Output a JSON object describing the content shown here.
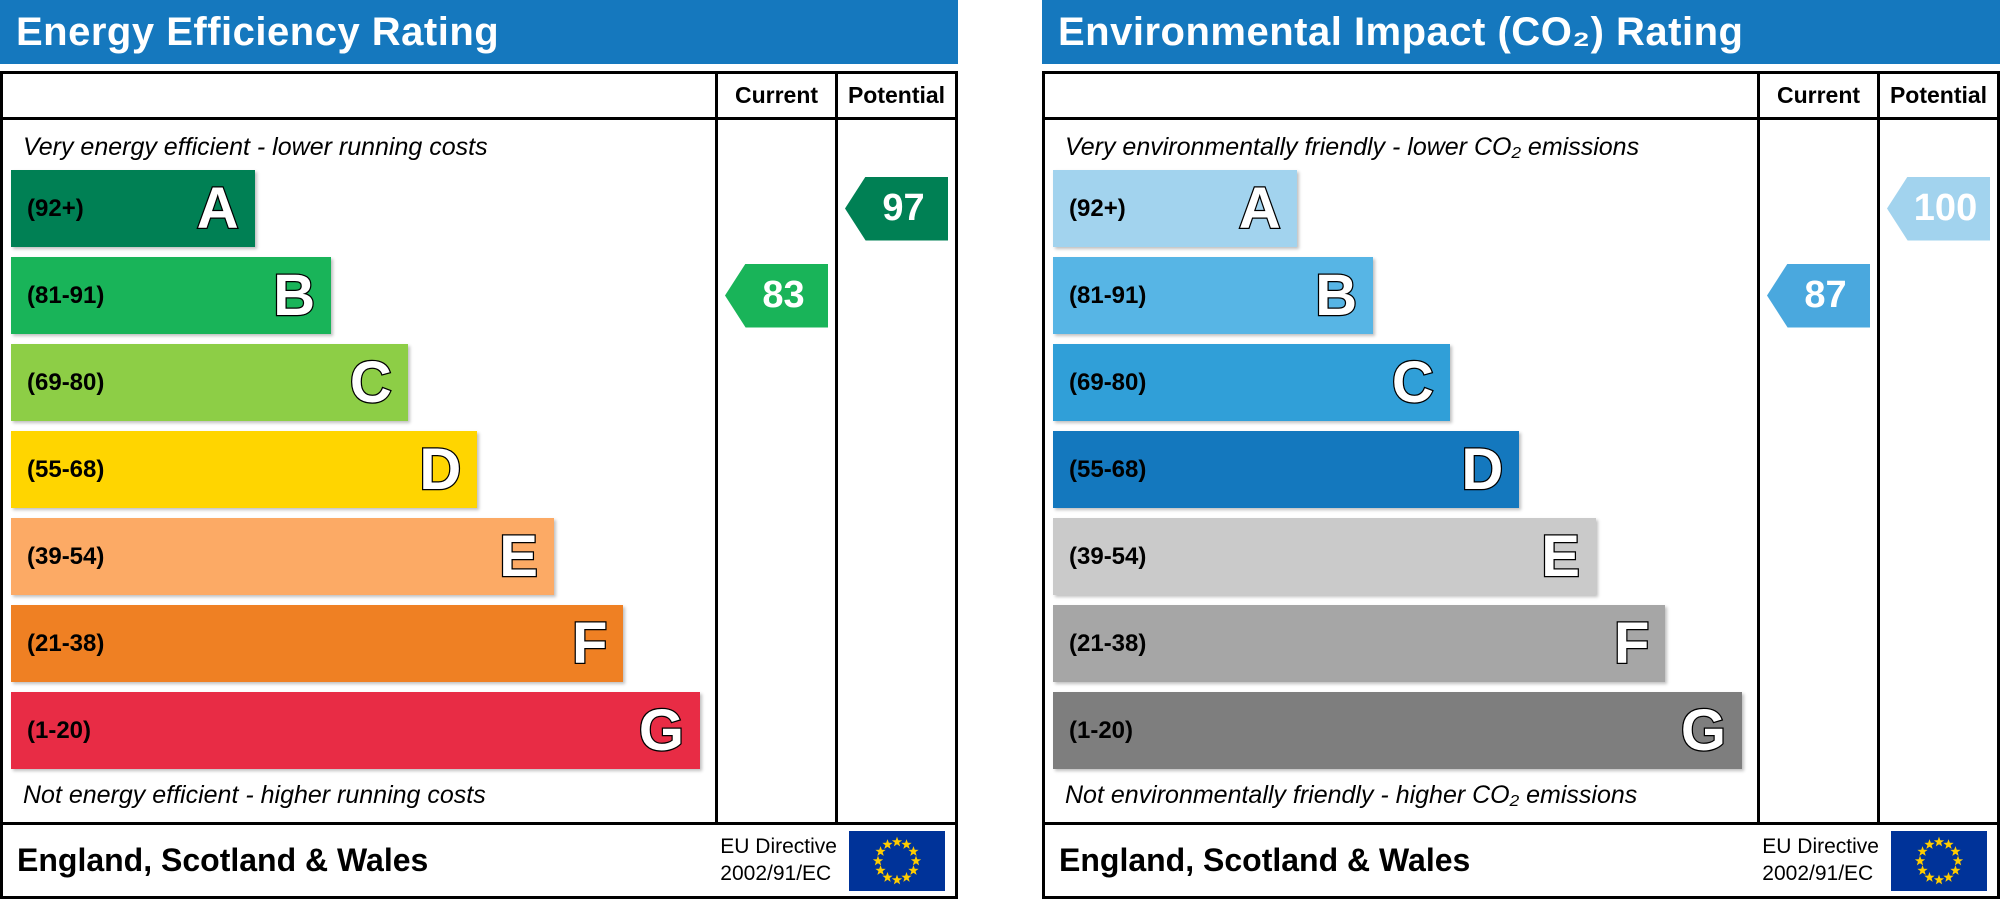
{
  "chart_data": [
    {
      "type": "bar",
      "title": "Energy Efficiency Rating",
      "categories": [
        "A (92+)",
        "B (81-91)",
        "C (69-80)",
        "D (55-68)",
        "E (39-54)",
        "F (21-38)",
        "G (1-20)"
      ],
      "series": [
        {
          "name": "Current",
          "values": [
            83
          ],
          "band": "B"
        },
        {
          "name": "Potential",
          "values": [
            97
          ],
          "band": "A"
        }
      ],
      "annotations": [
        "Very energy efficient - lower running costs",
        "Not energy efficient - higher running costs"
      ],
      "footer": "England, Scotland & Wales",
      "directive": "EU Directive 2002/91/EC",
      "xlim": [
        1,
        100
      ]
    },
    {
      "type": "bar",
      "title": "Environmental Impact (CO₂) Rating",
      "categories": [
        "A (92+)",
        "B (81-91)",
        "C (69-80)",
        "D (55-68)",
        "E (39-54)",
        "F (21-38)",
        "G (1-20)"
      ],
      "series": [
        {
          "name": "Current",
          "values": [
            87
          ],
          "band": "B"
        },
        {
          "name": "Potential",
          "values": [
            100
          ],
          "band": "A"
        }
      ],
      "annotations": [
        "Very environmentally friendly - lower CO₂ emissions",
        "Not environmentally friendly - higher CO₂ emissions"
      ],
      "footer": "England, Scotland & Wales",
      "directive": "EU Directive 2002/91/EC",
      "xlim": [
        1,
        100
      ]
    }
  ],
  "eu_flag": {
    "field": "#003399",
    "stars": "#ffcc00"
  },
  "charts": [
    {
      "id": "energy-efficiency",
      "title": "Energy Efficiency Rating",
      "header_color": "#1578be",
      "columns": {
        "current": "Current",
        "potential": "Potential"
      },
      "top_note": "Very energy efficient - lower running costs",
      "bottom_note": "Not energy efficient - higher running costs",
      "bands": [
        {
          "letter": "A",
          "range": "(92+)",
          "color": "#008054",
          "width_pct": 35
        },
        {
          "letter": "B",
          "range": "(81-91)",
          "color": "#19b459",
          "width_pct": 46
        },
        {
          "letter": "C",
          "range": "(69-80)",
          "color": "#8dce46",
          "width_pct": 57
        },
        {
          "letter": "D",
          "range": "(55-68)",
          "color": "#ffd500",
          "width_pct": 67
        },
        {
          "letter": "E",
          "range": "(39-54)",
          "color": "#fcaa65",
          "width_pct": 78
        },
        {
          "letter": "F",
          "range": "(21-38)",
          "color": "#ef8023",
          "width_pct": 88
        },
        {
          "letter": "G",
          "range": "(1-20)",
          "color": "#e82c45",
          "width_pct": 99
        }
      ],
      "current": {
        "value": 83,
        "row": 1,
        "color": "#19b459"
      },
      "potential": {
        "value": 97,
        "row": 0,
        "color": "#008054"
      },
      "footer": {
        "region": "England, Scotland & Wales",
        "directive_line1": "EU Directive",
        "directive_line2": "2002/91/EC"
      }
    },
    {
      "id": "environmental-impact",
      "title": "Environmental Impact (CO₂) Rating",
      "header_color": "#1578be",
      "columns": {
        "current": "Current",
        "potential": "Potential"
      },
      "top_note": "Very environmentally friendly - lower CO₂ emissions",
      "bottom_note": "Not environmentally friendly - higher CO₂ emissions",
      "bands": [
        {
          "letter": "A",
          "range": "(92+)",
          "color": "#a2d3ee",
          "width_pct": 35
        },
        {
          "letter": "B",
          "range": "(81-91)",
          "color": "#57b5e5",
          "width_pct": 46
        },
        {
          "letter": "C",
          "range": "(69-80)",
          "color": "#309fd8",
          "width_pct": 57
        },
        {
          "letter": "D",
          "range": "(55-68)",
          "color": "#1478be",
          "width_pct": 67
        },
        {
          "letter": "E",
          "range": "(39-54)",
          "color": "#cacaca",
          "width_pct": 78
        },
        {
          "letter": "F",
          "range": "(21-38)",
          "color": "#a6a6a6",
          "width_pct": 88
        },
        {
          "letter": "G",
          "range": "(1-20)",
          "color": "#7e7e7e",
          "width_pct": 99
        }
      ],
      "current": {
        "value": 87,
        "row": 1,
        "color": "#4aa8de"
      },
      "potential": {
        "value": 100,
        "row": 0,
        "color": "#a2d3ee"
      },
      "footer": {
        "region": "England, Scotland & Wales",
        "directive_line1": "EU Directive",
        "directive_line2": "2002/91/EC"
      }
    }
  ]
}
